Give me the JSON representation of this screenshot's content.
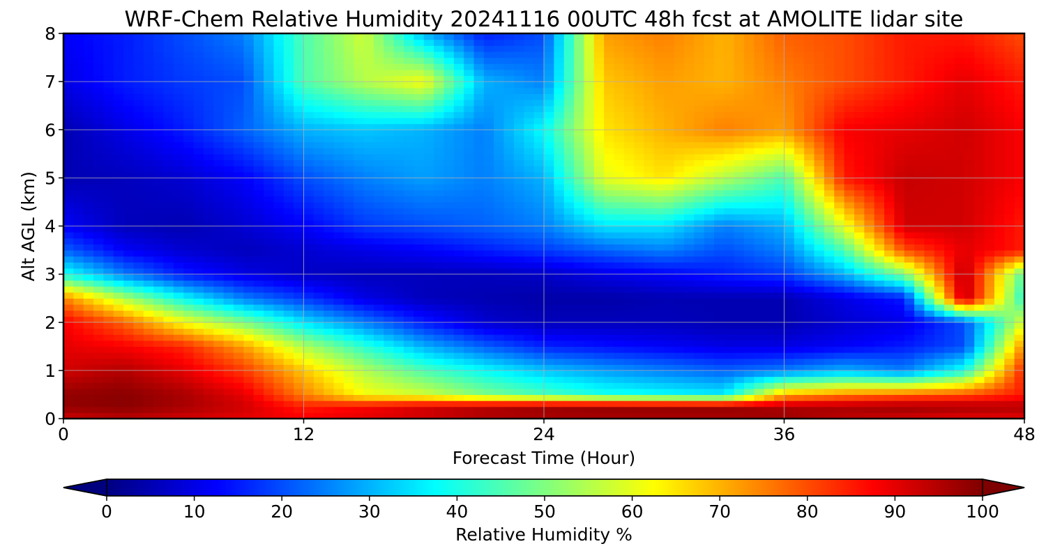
{
  "chart_data": {
    "type": "heatmap",
    "title": "WRF-Chem Relative Humidity 20241116 00UTC 48h fcst at AMOLITE lidar site",
    "xlabel": "Forecast Time (Hour)",
    "ylabel": "Alt AGL (km)",
    "xlim": [
      0,
      48
    ],
    "ylim": [
      0,
      8
    ],
    "x_ticks": [
      "0",
      "12",
      "24",
      "36",
      "48"
    ],
    "y_ticks": [
      "0",
      "1",
      "2",
      "3",
      "4",
      "5",
      "6",
      "7",
      "8"
    ],
    "grid": true,
    "colormap": "jet",
    "value_range": [
      0,
      100
    ],
    "colorbar": {
      "label": "Relative Humidity %",
      "ticks": [
        "0",
        "10",
        "20",
        "30",
        "40",
        "50",
        "60",
        "70",
        "80",
        "90",
        "100"
      ],
      "extend": "both",
      "placement": "bottom"
    },
    "x": [
      0,
      3,
      6,
      9,
      12,
      15,
      18,
      21,
      24,
      27,
      30,
      33,
      36,
      39,
      42,
      45,
      48
    ],
    "y": [
      0,
      0.25,
      0.5,
      1,
      1.5,
      2,
      2.5,
      3,
      3.5,
      4,
      5,
      6,
      7,
      8
    ],
    "z": [
      [
        92,
        94,
        92,
        90,
        88,
        90,
        92,
        95,
        96,
        96,
        96,
        96,
        97,
        94,
        92,
        90,
        90
      ],
      [
        98,
        99,
        96,
        92,
        85,
        88,
        92,
        95,
        97,
        98,
        98,
        98,
        96,
        96,
        97,
        96,
        95
      ],
      [
        98,
        99,
        96,
        90,
        75,
        62,
        58,
        50,
        45,
        40,
        38,
        36,
        70,
        75,
        78,
        80,
        85
      ],
      [
        92,
        95,
        90,
        82,
        68,
        55,
        45,
        38,
        32,
        28,
        25,
        22,
        25,
        30,
        25,
        40,
        85
      ],
      [
        90,
        88,
        84,
        72,
        55,
        42,
        30,
        22,
        16,
        14,
        12,
        10,
        10,
        12,
        15,
        20,
        75
      ],
      [
        88,
        78,
        62,
        50,
        35,
        25,
        15,
        8,
        6,
        6,
        6,
        5,
        5,
        8,
        10,
        20,
        60
      ],
      [
        75,
        55,
        38,
        25,
        18,
        10,
        6,
        5,
        4,
        4,
        5,
        5,
        5,
        10,
        15,
        95,
        40
      ],
      [
        40,
        25,
        15,
        10,
        7,
        6,
        6,
        6,
        7,
        10,
        12,
        15,
        18,
        30,
        50,
        95,
        45
      ],
      [
        22,
        12,
        8,
        6,
        8,
        10,
        12,
        15,
        18,
        22,
        25,
        20,
        25,
        45,
        80,
        90,
        85
      ],
      [
        12,
        6,
        5,
        8,
        12,
        18,
        20,
        22,
        25,
        35,
        35,
        25,
        30,
        60,
        92,
        92,
        85
      ],
      [
        5,
        6,
        8,
        12,
        20,
        25,
        28,
        25,
        30,
        60,
        65,
        55,
        45,
        85,
        93,
        92,
        88
      ],
      [
        5,
        10,
        15,
        22,
        30,
        32,
        30,
        25,
        38,
        65,
        70,
        75,
        72,
        88,
        90,
        92,
        88
      ],
      [
        10,
        15,
        18,
        20,
        45,
        55,
        62,
        30,
        25,
        68,
        72,
        70,
        75,
        80,
        85,
        90,
        85
      ],
      [
        12,
        15,
        20,
        25,
        45,
        58,
        30,
        15,
        20,
        72,
        75,
        70,
        78,
        80,
        85,
        85,
        80
      ]
    ]
  }
}
